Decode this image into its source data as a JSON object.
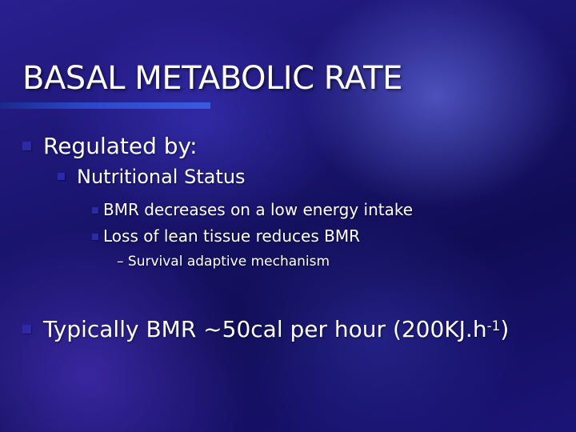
{
  "slide": {
    "title": "BASAL METABOLIC RATE",
    "bullets": {
      "regulated_by": "Regulated by:",
      "nutritional_status": "Nutritional Status",
      "bmr_decreases": "BMR decreases on a low energy intake",
      "lean_tissue": "Loss of lean tissue reduces BMR",
      "survival": "– Survival adaptive mechanism",
      "typically_main": "Typically BMR ~50cal per hour (200KJ.h",
      "typically_sup": "-1",
      "typically_end": ")"
    }
  },
  "colors": {
    "background_primary": "#1a1570",
    "bullet_marker": "#2d2aa8",
    "text": "#ffffff"
  }
}
